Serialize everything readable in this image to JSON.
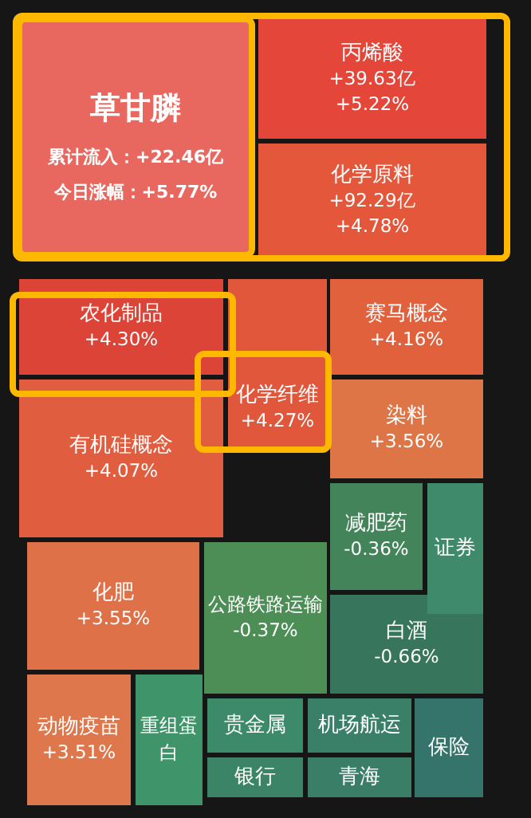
{
  "chart_data": {
    "type": "other",
    "categories": [
      "草甘膦",
      "丙烯酸",
      "化学原料",
      "农化制品",
      "化学纤维",
      "赛马概念",
      "有机硅概念",
      "染料",
      "化肥",
      "公路铁路运输",
      "减肥药",
      "证券",
      "白酒",
      "动物疫苗",
      "重组蛋白",
      "贵金属",
      "机场航运",
      "银行",
      "青海",
      "保险"
    ],
    "values": [
      5.77,
      5.22,
      4.78,
      4.3,
      4.27,
      4.16,
      4.07,
      3.56,
      3.55,
      -0.37,
      -0.36,
      null,
      -0.66,
      3.51,
      null,
      null,
      null,
      null,
      null,
      null
    ],
    "value_labels": [
      "今日涨幅：+5.77%",
      "+5.22%",
      "+4.78%",
      "+4.30%",
      "+4.27%",
      "+4.16%",
      "+4.07%",
      "+3.56%",
      "+3.55%",
      "-0.37%",
      "-0.36%",
      null,
      "-0.66%",
      "+3.51%",
      null,
      null,
      null,
      null,
      null,
      null
    ],
    "annotations": [
      {
        "text": "累计流入：+22.46亿",
        "x": "草甘膦"
      },
      {
        "text": "+39.63亿",
        "x": "丙烯酸"
      },
      {
        "text": "+92.29亿",
        "x": "化学原料"
      }
    ],
    "colors": [
      "#e8675f",
      "#e9473a",
      "#ec5a3d",
      "#e8473a",
      "#ec5b3e",
      "#ee6640",
      "#ed6242",
      "#f07e4c",
      "#f07a4d",
      "#5aaa66",
      "#4e9e6a",
      "#3f8a6a",
      "#3f8a6c",
      "#f08050",
      "#3f946a",
      "#3d8a6a",
      "#3a8068",
      "#3b8468",
      "#3a7e68",
      "#35746a"
    ]
  }
}
